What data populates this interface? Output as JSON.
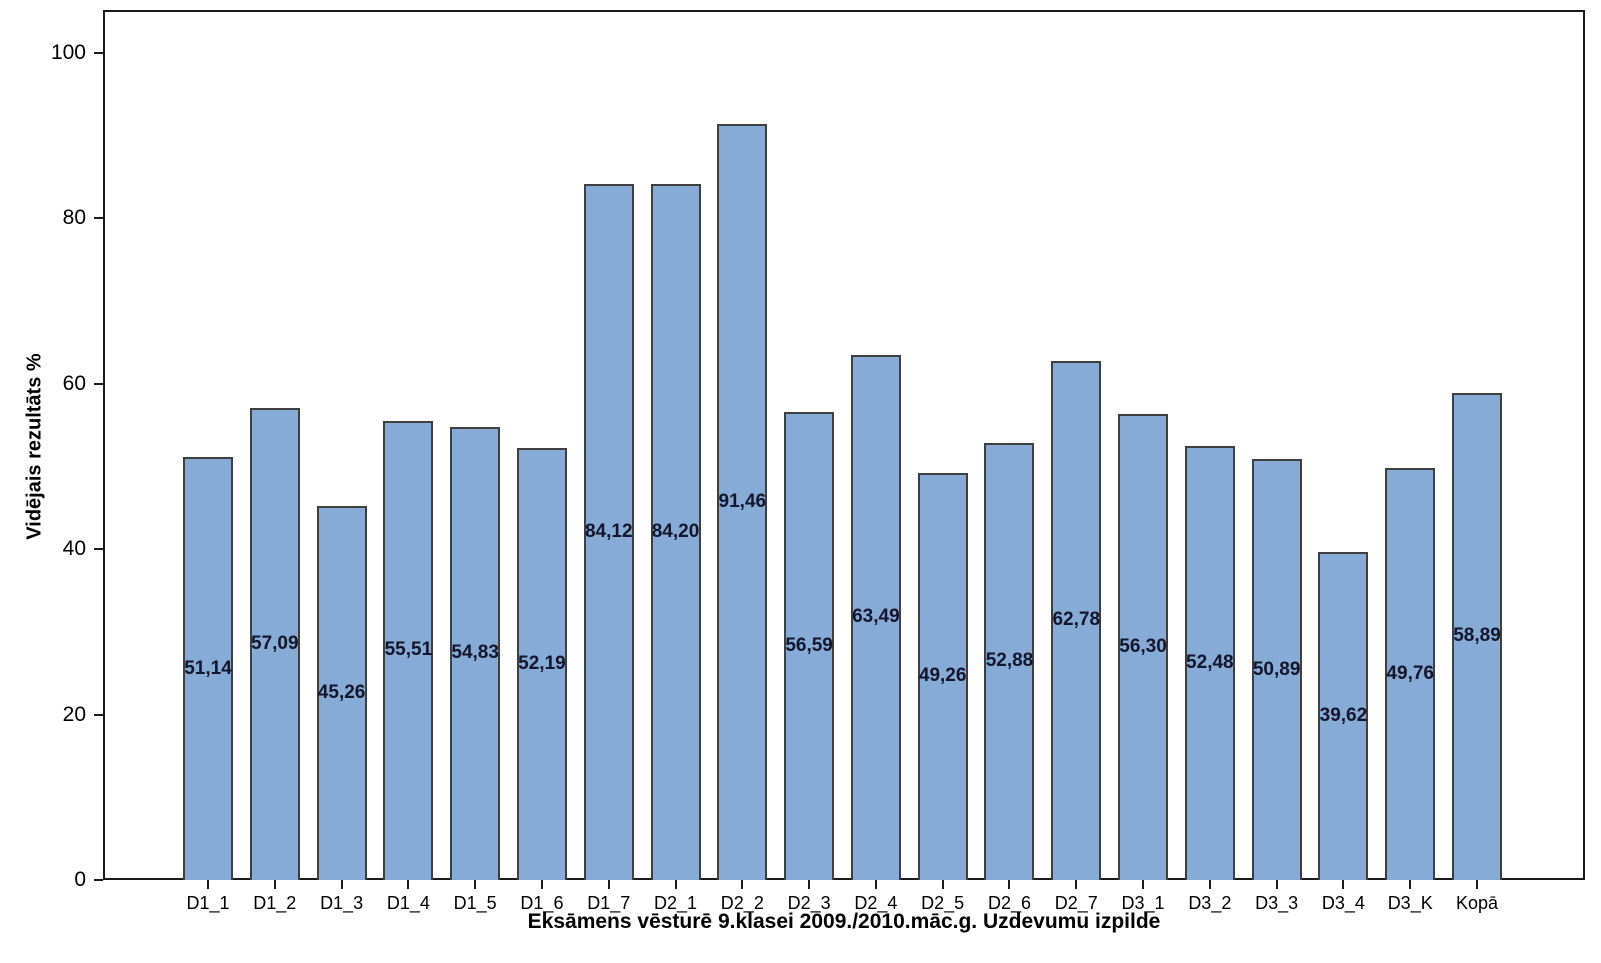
{
  "chart_data": {
    "type": "bar",
    "title": "",
    "xlabel": "Eksāmens vēsturē 9.klasei 2009./2010.māc.g. Uzdevumu izpilde",
    "ylabel": "Vidējais rezultāts %",
    "categories": [
      "D1_1",
      "D1_2",
      "D1_3",
      "D1_4",
      "D1_5",
      "D1_6",
      "D1_7",
      "D2_1",
      "D2_2",
      "D2_3",
      "D2_4",
      "D2_5",
      "D2_6",
      "D2_7",
      "D3_1",
      "D3_2",
      "D3_3",
      "D3_4",
      "D3_K",
      "Kopā"
    ],
    "values": [
      51.14,
      57.09,
      45.26,
      55.51,
      54.83,
      52.19,
      84.12,
      84.2,
      91.46,
      56.59,
      63.49,
      49.26,
      52.88,
      62.78,
      56.3,
      52.48,
      50.89,
      39.62,
      49.76,
      58.89
    ],
    "value_labels": [
      "51,14",
      "57,09",
      "45,26",
      "55,51",
      "54,83",
      "52,19",
      "84,12",
      "84,20",
      "91,46",
      "56,59",
      "63,49",
      "49,26",
      "52,88",
      "62,78",
      "56,30",
      "52,48",
      "50,89",
      "39,62",
      "49,76",
      "58,89"
    ],
    "yticks": [
      0,
      20,
      40,
      60,
      80,
      100
    ],
    "ylim": [
      0,
      105.2
    ],
    "grid": false,
    "legend": false,
    "bar_color": "#85abd6",
    "bar_border_color": "#3f3f3f",
    "value_label_color": "#15152b",
    "axis_color": "#1a1a1a"
  }
}
